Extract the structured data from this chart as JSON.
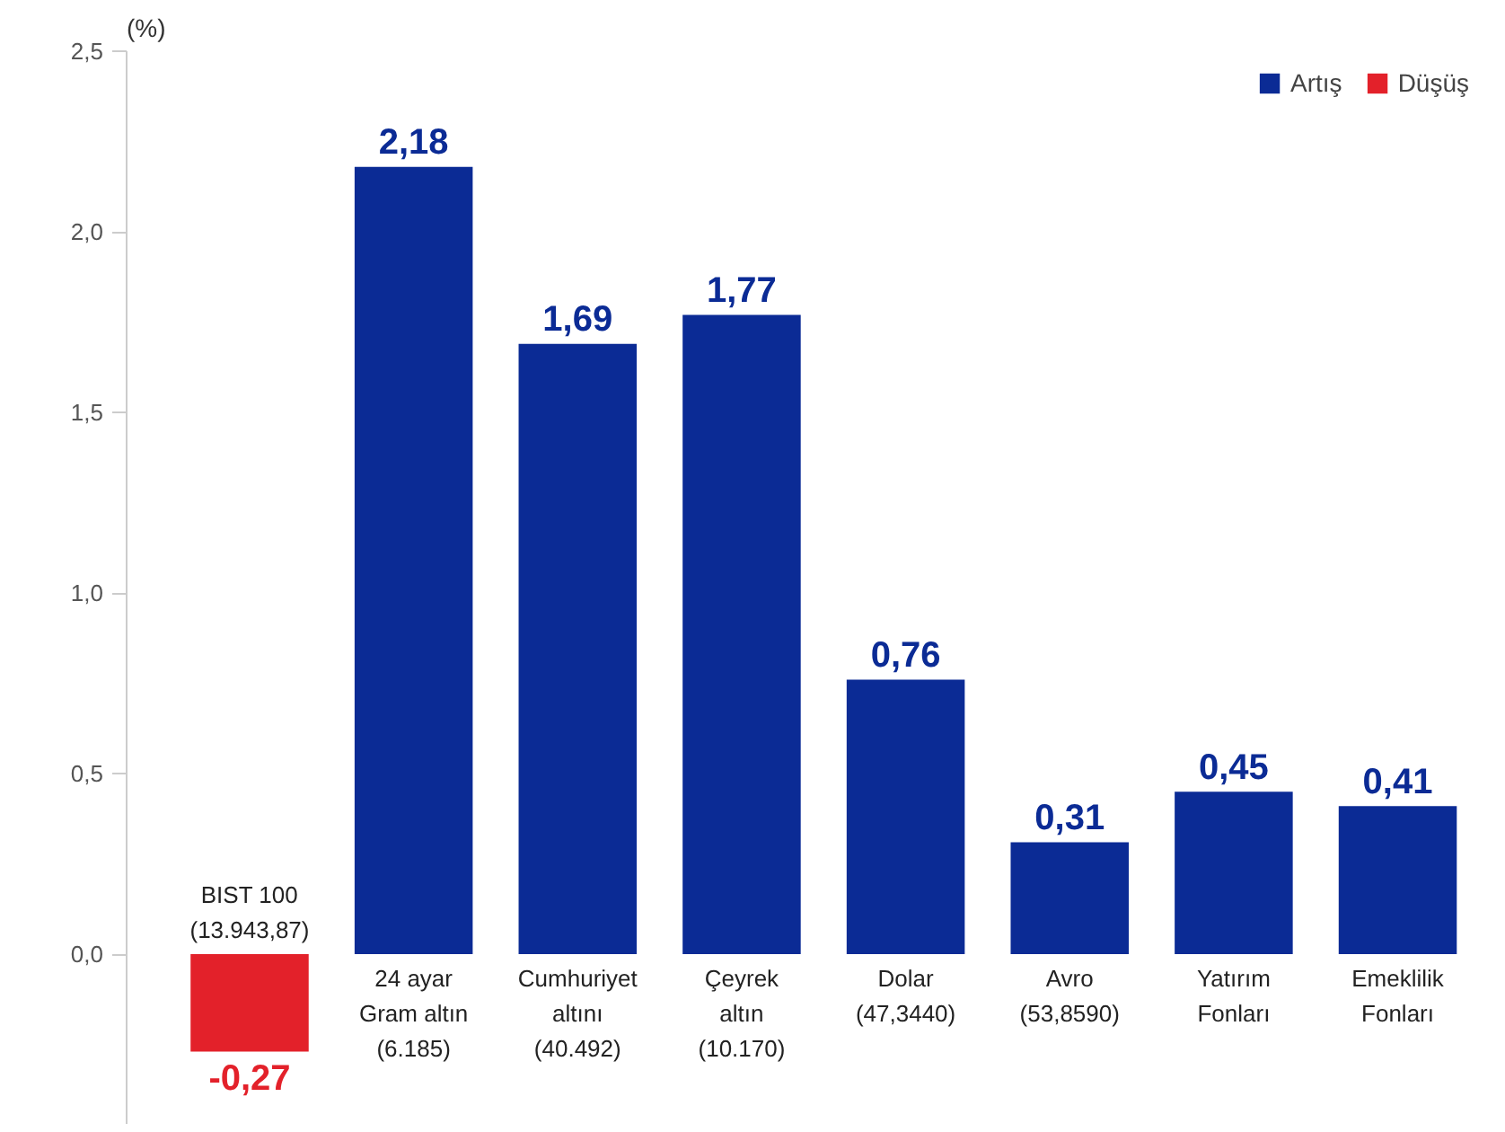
{
  "chart_data": {
    "type": "bar",
    "ylabel": "(%)",
    "categories": [
      "BIST 100\n(13.943,87)",
      "24 ayar\nGram altın\n(6.185)",
      "Cumhuriyet\naltını\n(40.492)",
      "Çeyrek\naltın\n(10.170)",
      "Dolar\n(47,3440)",
      "Avro\n(53,8590)",
      "Yatırım\nFonları",
      "Emeklilik\nFonları"
    ],
    "series": [
      {
        "name": "Artış",
        "color": "#0b2b95",
        "values": [
          null,
          2.18,
          1.69,
          1.77,
          0.76,
          0.31,
          0.45,
          0.41
        ],
        "value_labels": [
          null,
          "2,18",
          "1,69",
          "1,77",
          "0,76",
          "0,31",
          "0,45",
          "0,41"
        ]
      },
      {
        "name": "Düşüş",
        "color": "#e3212a",
        "values": [
          -0.27,
          null,
          null,
          null,
          null,
          null,
          null,
          null
        ],
        "value_labels": [
          "-0,27",
          null,
          null,
          null,
          null,
          null,
          null,
          null
        ]
      }
    ],
    "ylim": [
      -0.47,
      2.5
    ],
    "yticks": [
      {
        "value": 0,
        "label": "0,0"
      },
      {
        "value": 0.5,
        "label": "0,5"
      },
      {
        "value": 1,
        "label": "1,0"
      },
      {
        "value": 1.5,
        "label": "1,5"
      },
      {
        "value": 2,
        "label": "2,0"
      },
      {
        "value": 2.5,
        "label": "2,5"
      }
    ],
    "grid": false,
    "legend": "top right"
  }
}
